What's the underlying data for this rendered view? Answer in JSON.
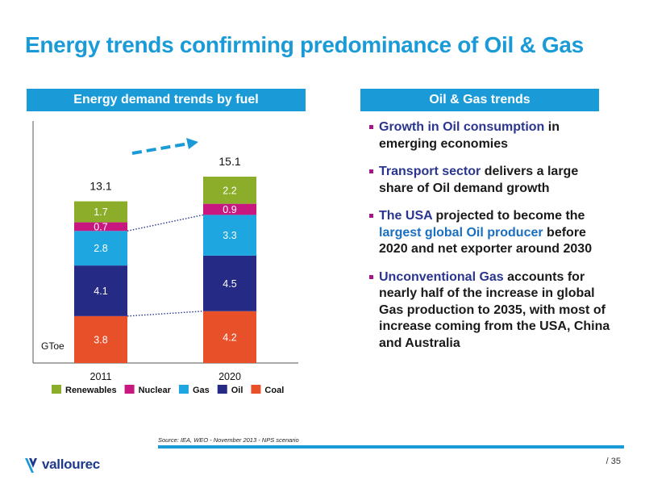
{
  "slide": {
    "title": "Energy trends confirming predominance of Oil & Gas",
    "source": "Source: IEA, WEO - November 2013 - NPS scenario",
    "page_number": "/ 35",
    "logo_text": "vallourec"
  },
  "left_panel": {
    "header": "Energy demand trends by fuel"
  },
  "right_panel": {
    "header": "Oil & Gas trends",
    "bullets": [
      {
        "segments": [
          {
            "text": "Growth in Oil consumption",
            "hl": "hl"
          },
          {
            "text": " in emerging economies",
            "hl": ""
          }
        ]
      },
      {
        "segments": [
          {
            "text": "Transport sector",
            "hl": "hl"
          },
          {
            "text": " delivers a large share of Oil demand growth",
            "hl": ""
          }
        ]
      },
      {
        "segments": [
          {
            "text": "The USA",
            "hl": "hl"
          },
          {
            "text": " projected to become the ",
            "hl": ""
          },
          {
            "text": "largest global Oil producer",
            "hl": "hl2"
          },
          {
            "text": " before 2020 and net exporter around 2030",
            "hl": ""
          }
        ]
      },
      {
        "segments": [
          {
            "text": "Unconventional Gas",
            "hl": "hl"
          },
          {
            "text": " accounts for nearly half of the increase in global Gas production to 2035, with most of increase coming from the USA, China and Australia",
            "hl": ""
          }
        ]
      }
    ]
  },
  "chart_data": {
    "type": "bar",
    "stacked": true,
    "categories": [
      "2011",
      "2020"
    ],
    "totals": [
      "13.1",
      "15.1"
    ],
    "unit_label": "GToe",
    "series": [
      {
        "name": "Coal",
        "color": "#e8502a",
        "values": [
          3.8,
          4.2
        ]
      },
      {
        "name": "Oil",
        "color": "#252a85",
        "values": [
          4.1,
          4.5
        ]
      },
      {
        "name": "Gas",
        "color": "#1ea6e0",
        "values": [
          2.8,
          3.3
        ]
      },
      {
        "name": "Nuclear",
        "color": "#c8177f",
        "values": [
          0.7,
          0.9
        ]
      },
      {
        "name": "Renewables",
        "color": "#8cad2a",
        "values": [
          1.7,
          2.2
        ]
      }
    ],
    "legend_order": [
      "Renewables",
      "Nuclear",
      "Gas",
      "Oil",
      "Coal"
    ],
    "legend_position": "bottom"
  }
}
